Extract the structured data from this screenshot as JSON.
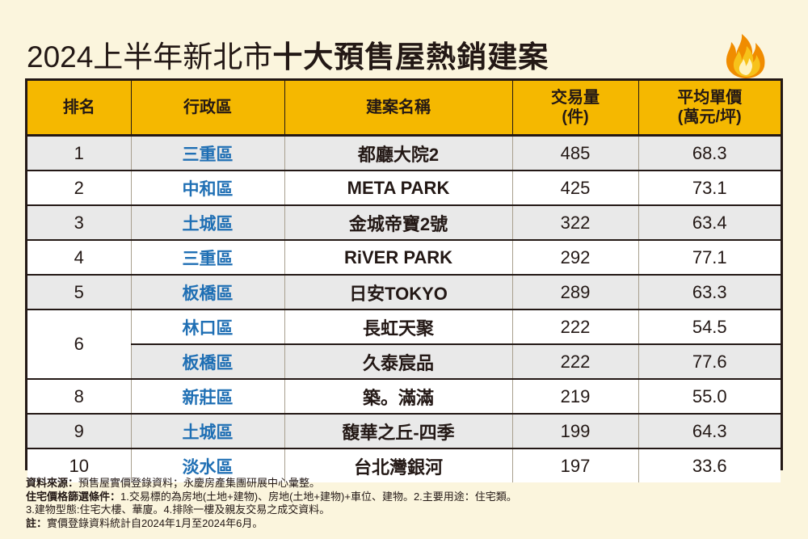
{
  "title": {
    "light": "2024上半年新北市",
    "bold": "十大預售屋熱銷建案"
  },
  "table": {
    "headers": {
      "rank": "排名",
      "district": "行政區",
      "project": "建案名稱",
      "volume_line1": "交易量",
      "volume_line2": "(件)",
      "price_line1": "平均單價",
      "price_line2": "(萬元/坪)"
    },
    "rows": [
      {
        "rank": "1",
        "district": "三重區",
        "project": "都廳大院2",
        "volume": "485",
        "price": "68.3"
      },
      {
        "rank": "2",
        "district": "中和區",
        "project": "META PARK",
        "volume": "425",
        "price": "73.1"
      },
      {
        "rank": "3",
        "district": "土城區",
        "project": "金城帝寶2號",
        "volume": "322",
        "price": "63.4"
      },
      {
        "rank": "4",
        "district": "三重區",
        "project": "RiVER PARK",
        "volume": "292",
        "price": "77.1"
      },
      {
        "rank": "5",
        "district": "板橋區",
        "project": "日安TOKYO",
        "volume": "289",
        "price": "63.3"
      },
      {
        "rank": "6",
        "district": "林口區",
        "project": "長虹天聚",
        "volume": "222",
        "price": "54.5"
      },
      {
        "rank": "",
        "district": "板橋區",
        "project": "久泰宸品",
        "volume": "222",
        "price": "77.6"
      },
      {
        "rank": "8",
        "district": "新莊區",
        "project": "築。滿滿",
        "volume": "219",
        "price": "55.0"
      },
      {
        "rank": "9",
        "district": "土城區",
        "project": "馥華之丘-四季",
        "volume": "199",
        "price": "64.3"
      },
      {
        "rank": "10",
        "district": "淡水區",
        "project": "台北灣銀河",
        "volume": "197",
        "price": "33.6"
      }
    ]
  },
  "notes": {
    "source_label": "資料來源：",
    "source_text": "預售屋實價登錄資料；永慶房產集團研展中心彙整。",
    "criteria_label": "住宅價格篩選條件：",
    "criteria_text": "1.交易標的為房地(土地+建物)、房地(土地+建物)+車位、建物。2.主要用途：住宅類。",
    "criteria_text2": "3.建物型態:住宅大樓、華廈。4.排除一樓及親友交易之成交資料。",
    "note_label": "註：",
    "note_text": "實價登錄資料統計自2024年1月至2024年6月。"
  },
  "colors": {
    "header_bg": "#f5b800",
    "district_text": "#1f6fb4",
    "page_bg": "#fbf5dd",
    "row_shade": "#e9e9e9"
  },
  "icons": {
    "flame": "flame-icon"
  }
}
